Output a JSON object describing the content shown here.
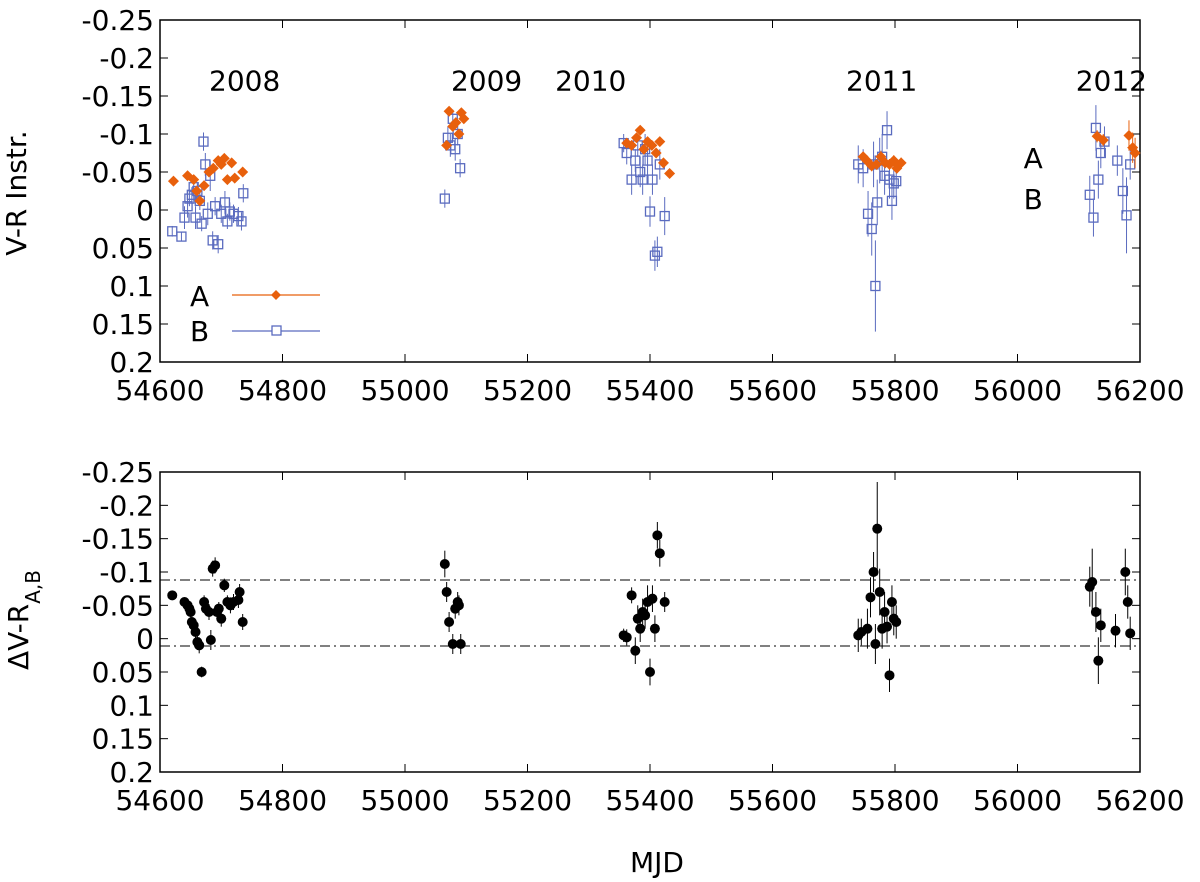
{
  "colors": {
    "A": "#e8600c",
    "B": "#5a6bbf",
    "diff": "#000000",
    "axis": "#000000"
  },
  "chart_data": [
    {
      "id": "top",
      "type": "scatter",
      "ylabel": "V-R Instr.",
      "xlim": [
        54600,
        56200
      ],
      "ylim": [
        0.2,
        -0.25
      ],
      "y_inverted": true,
      "xticks": [
        54600,
        54800,
        55000,
        55200,
        55400,
        55600,
        55800,
        56000,
        56200
      ],
      "xtick_labels": [
        "54600",
        "54800",
        "55000",
        "55200",
        "55400",
        "55600",
        "55800",
        "56000",
        "56200"
      ],
      "yticks": [
        -0.25,
        -0.2,
        -0.15,
        -0.1,
        -0.05,
        0,
        0.05,
        0.1,
        0.15,
        0.2
      ],
      "ytick_labels": [
        "-0.25",
        "-0.2",
        "-0.15",
        "-0.1",
        "-0.05",
        "0",
        "0.05",
        "0.1",
        "0.15",
        "0.2"
      ],
      "annotations": [
        {
          "text": "2008",
          "x": 54680,
          "y": -0.157
        },
        {
          "text": "2009",
          "x": 55075,
          "y": -0.157
        },
        {
          "text": "2010",
          "x": 55245,
          "y": -0.157
        },
        {
          "text": "2011",
          "x": 55720,
          "y": -0.157
        },
        {
          "text": "2012",
          "x": 56095,
          "y": -0.157
        },
        {
          "text": "A",
          "x": 56010,
          "y": -0.055,
          "series": "A"
        },
        {
          "text": "B",
          "x": 56010,
          "y": -0.001,
          "series": "B"
        }
      ],
      "legend": {
        "position": "bottom-left",
        "entries": [
          {
            "label": "A",
            "series": "A"
          },
          {
            "label": "B",
            "series": "B"
          }
        ]
      },
      "series": [
        {
          "name": "A",
          "marker": "diamond",
          "x": [
            54622,
            54645,
            54655,
            54660,
            54665,
            54672,
            54680,
            54687,
            54695,
            54700,
            54705,
            54710,
            54717,
            54722,
            54735,
            55068,
            55072,
            55078,
            55083,
            55088,
            55092,
            55096,
            55362,
            55370,
            55378,
            55384,
            55390,
            55396,
            55403,
            55410,
            55416,
            55422,
            55432,
            55748,
            55754,
            55762,
            55770,
            55777,
            55784,
            55791,
            55798,
            55803,
            55810,
            56130,
            56140,
            56182,
            56188,
            56192
          ],
          "y": [
            -0.038,
            -0.045,
            -0.04,
            -0.025,
            -0.012,
            -0.032,
            -0.05,
            -0.055,
            -0.065,
            -0.06,
            -0.068,
            -0.04,
            -0.062,
            -0.042,
            -0.05,
            -0.085,
            -0.13,
            -0.11,
            -0.115,
            -0.1,
            -0.128,
            -0.12,
            -0.088,
            -0.085,
            -0.095,
            -0.105,
            -0.08,
            -0.09,
            -0.085,
            -0.075,
            -0.09,
            -0.062,
            -0.048,
            -0.07,
            -0.065,
            -0.058,
            -0.06,
            -0.07,
            -0.062,
            -0.06,
            -0.065,
            -0.055,
            -0.062,
            -0.097,
            -0.092,
            -0.098,
            -0.082,
            -0.075
          ],
          "yerr": [
            0.005,
            0.005,
            0.006,
            0.006,
            0.006,
            0.005,
            0.005,
            0.005,
            0.005,
            0.006,
            0.005,
            0.005,
            0.005,
            0.005,
            0.005,
            0.006,
            0.005,
            0.006,
            0.006,
            0.005,
            0.005,
            0.005,
            0.006,
            0.006,
            0.006,
            0.006,
            0.006,
            0.006,
            0.006,
            0.006,
            0.006,
            0.006,
            0.006,
            0.006,
            0.007,
            0.007,
            0.007,
            0.008,
            0.007,
            0.007,
            0.007,
            0.007,
            0.007,
            0.008,
            0.008,
            0.02,
            0.02,
            0.02
          ]
        },
        {
          "name": "B",
          "marker": "open-square",
          "x": [
            54620,
            54635,
            54640,
            54645,
            54648,
            54652,
            54655,
            54658,
            54661,
            54665,
            54668,
            54671,
            54674,
            54678,
            54682,
            54686,
            54690,
            54695,
            54700,
            54706,
            54710,
            54714,
            54720,
            54728,
            54733,
            54736,
            55065,
            55070,
            55074,
            55078,
            55082,
            55086,
            55090,
            55357,
            55362,
            55370,
            55376,
            55380,
            55384,
            55388,
            55392,
            55396,
            55400,
            55404,
            55408,
            55412,
            55416,
            55424,
            55740,
            55748,
            55756,
            55762,
            55765,
            55768,
            55771,
            55775,
            55779,
            55783,
            55787,
            55791,
            55795,
            55798,
            55802,
            56118,
            56124,
            56128,
            56132,
            56136,
            56142,
            56163,
            56172,
            56178,
            56184
          ],
          "y": [
            0.028,
            0.035,
            0.01,
            -0.005,
            -0.015,
            -0.02,
            -0.03,
            0.01,
            -0.025,
            -0.012,
            0.018,
            -0.09,
            -0.06,
            0.005,
            -0.045,
            0.04,
            -0.005,
            0.045,
            0.005,
            -0.01,
            0.015,
            0.002,
            0.005,
            0.008,
            0.015,
            -0.022,
            -0.015,
            -0.095,
            -0.085,
            -0.12,
            -0.08,
            -0.1,
            -0.055,
            -0.088,
            -0.075,
            -0.04,
            -0.065,
            -0.085,
            -0.05,
            -0.04,
            -0.08,
            -0.065,
            0.002,
            -0.04,
            0.06,
            0.055,
            -0.06,
            0.008,
            -0.06,
            -0.055,
            0.005,
            0.025,
            -0.06,
            0.1,
            -0.01,
            -0.065,
            -0.07,
            -0.045,
            -0.105,
            -0.04,
            -0.012,
            -0.035,
            -0.038,
            -0.02,
            0.01,
            -0.108,
            -0.04,
            -0.075,
            -0.09,
            -0.065,
            -0.025,
            0.007,
            -0.06
          ],
          "yerr": [
            0.007,
            0.006,
            0.015,
            0.015,
            0.01,
            0.01,
            0.012,
            0.015,
            0.01,
            0.012,
            0.01,
            0.012,
            0.015,
            0.015,
            0.02,
            0.012,
            0.012,
            0.012,
            0.012,
            0.015,
            0.01,
            0.012,
            0.012,
            0.012,
            0.012,
            0.012,
            0.012,
            0.015,
            0.015,
            0.012,
            0.015,
            0.015,
            0.012,
            0.012,
            0.015,
            0.02,
            0.015,
            0.015,
            0.02,
            0.02,
            0.02,
            0.02,
            0.02,
            0.02,
            0.02,
            0.02,
            0.02,
            0.025,
            0.025,
            0.025,
            0.03,
            0.035,
            0.03,
            0.06,
            0.03,
            0.03,
            0.03,
            0.025,
            0.025,
            0.025,
            0.025,
            0.02,
            0.02,
            0.025,
            0.025,
            0.03,
            0.025,
            0.02,
            0.02,
            0.02,
            0.03,
            0.05,
            0.02
          ]
        }
      ]
    },
    {
      "id": "bottom",
      "type": "scatter",
      "xlabel": "MJD",
      "ylabel": "ΔV-R",
      "ylabel_sub": "A,B",
      "xlim": [
        54600,
        56200
      ],
      "ylim": [
        0.2,
        -0.25
      ],
      "y_inverted": true,
      "xticks": [
        54600,
        54800,
        55000,
        55200,
        55400,
        55600,
        55800,
        56000,
        56200
      ],
      "xtick_labels": [
        "54600",
        "54800",
        "55000",
        "55200",
        "55400",
        "55600",
        "55800",
        "56000",
        "56200"
      ],
      "yticks": [
        -0.25,
        -0.2,
        -0.15,
        -0.1,
        -0.05,
        0,
        0.05,
        0.1,
        0.15,
        0.2
      ],
      "ytick_labels": [
        "-0.25",
        "-0.2",
        "-0.15",
        "-0.1",
        "-0.05",
        "0",
        "0.05",
        "0.1",
        "0.15",
        "0.2"
      ],
      "reference_lines": [
        {
          "y": -0.088,
          "style": "dash-dot"
        },
        {
          "y": 0.011,
          "style": "dash-dot"
        }
      ],
      "series": [
        {
          "name": "A-B",
          "marker": "filled-circle",
          "x": [
            54620,
            54640,
            54645,
            54648,
            54650,
            54652,
            54655,
            54658,
            54661,
            54664,
            54668,
            54672,
            54675,
            54680,
            54683,
            54686,
            54690,
            54693,
            54696,
            54700,
            54705,
            54710,
            54715,
            54720,
            54728,
            54730,
            54735,
            55065,
            55068,
            55072,
            55078,
            55082,
            55086,
            55088,
            55091,
            55357,
            55362,
            55370,
            55376,
            55380,
            55384,
            55388,
            55392,
            55396,
            55400,
            55404,
            55408,
            55412,
            55416,
            55424,
            55740,
            55745,
            55755,
            55760,
            55765,
            55768,
            55771,
            55775,
            55779,
            55783,
            55787,
            55791,
            55795,
            55798,
            55802,
            56118,
            56122,
            56128,
            56132,
            56136,
            56160,
            56176,
            56180,
            56184
          ],
          "y": [
            -0.065,
            -0.055,
            -0.05,
            -0.045,
            -0.04,
            -0.025,
            -0.02,
            -0.01,
            0.005,
            0.01,
            0.05,
            -0.055,
            -0.045,
            -0.04,
            0.002,
            -0.105,
            -0.11,
            -0.04,
            -0.045,
            -0.03,
            -0.08,
            -0.055,
            -0.05,
            -0.055,
            -0.058,
            -0.07,
            -0.025,
            -0.112,
            -0.07,
            -0.025,
            0.008,
            -0.045,
            -0.055,
            -0.05,
            0.008,
            -0.005,
            -0.002,
            -0.065,
            0.018,
            -0.03,
            -0.015,
            -0.04,
            -0.035,
            -0.055,
            0.05,
            -0.06,
            -0.015,
            -0.155,
            -0.128,
            -0.055,
            -0.005,
            -0.01,
            -0.015,
            -0.062,
            -0.1,
            0.008,
            -0.165,
            -0.07,
            -0.015,
            -0.04,
            -0.018,
            0.055,
            -0.055,
            -0.03,
            -0.025,
            -0.078,
            -0.085,
            -0.04,
            0.033,
            -0.02,
            -0.012,
            -0.1,
            -0.055,
            -0.008
          ],
          "yerr": [
            0.005,
            0.005,
            0.006,
            0.006,
            0.008,
            0.008,
            0.008,
            0.01,
            0.012,
            0.012,
            0.008,
            0.01,
            0.01,
            0.012,
            0.015,
            0.012,
            0.012,
            0.01,
            0.01,
            0.012,
            0.01,
            0.01,
            0.012,
            0.012,
            0.012,
            0.012,
            0.012,
            0.02,
            0.015,
            0.015,
            0.015,
            0.015,
            0.015,
            0.015,
            0.015,
            0.01,
            0.012,
            0.012,
            0.02,
            0.02,
            0.02,
            0.02,
            0.02,
            0.025,
            0.02,
            0.02,
            0.02,
            0.02,
            0.02,
            0.015,
            0.025,
            0.02,
            0.03,
            0.03,
            0.03,
            0.03,
            0.07,
            0.035,
            0.03,
            0.03,
            0.025,
            0.025,
            0.025,
            0.025,
            0.025,
            0.03,
            0.05,
            0.03,
            0.035,
            0.025,
            0.025,
            0.035,
            0.025,
            0.025
          ]
        }
      ]
    }
  ]
}
